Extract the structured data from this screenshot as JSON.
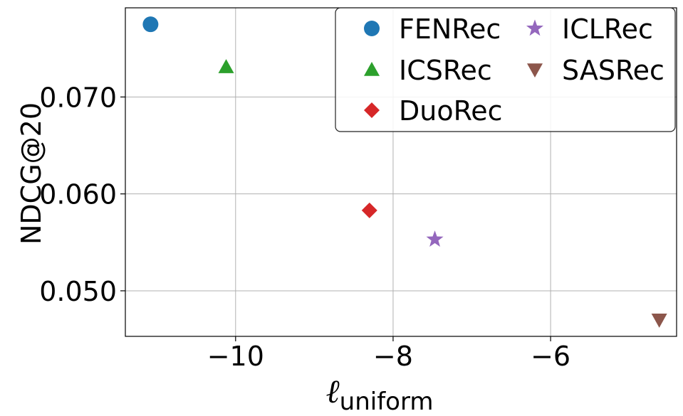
{
  "chart_data": {
    "type": "scatter",
    "xlabel_symbol": "ℓ",
    "xlabel_subscript": "uniform",
    "ylabel": "NDCG@20",
    "xlim": [
      -11.4,
      -4.4
    ],
    "ylim": [
      0.0453,
      0.0792
    ],
    "x_ticks": [
      -10,
      -8,
      -6
    ],
    "x_tick_labels": [
      "−10",
      "−8",
      "−6"
    ],
    "y_ticks": [
      0.05,
      0.06,
      0.07
    ],
    "y_tick_labels": [
      "0.050",
      "0.060",
      "0.070"
    ],
    "grid": true,
    "legend_position": "top-right",
    "legend_columns": 2,
    "series": [
      {
        "name": "FENRec",
        "marker": "circle",
        "color": "#1f77b4",
        "x": -11.08,
        "y": 0.0775
      },
      {
        "name": "ICSRec",
        "marker": "triangle-up",
        "color": "#2ca02c",
        "x": -10.12,
        "y": 0.0731
      },
      {
        "name": "DuoRec",
        "marker": "diamond",
        "color": "#d62728",
        "x": -8.3,
        "y": 0.0583
      },
      {
        "name": "ICLRec",
        "marker": "star",
        "color": "#9467bd",
        "x": -7.47,
        "y": 0.0553
      },
      {
        "name": "SASRec",
        "marker": "triangle-down",
        "color": "#8c564b",
        "x": -4.62,
        "y": 0.047
      }
    ]
  }
}
